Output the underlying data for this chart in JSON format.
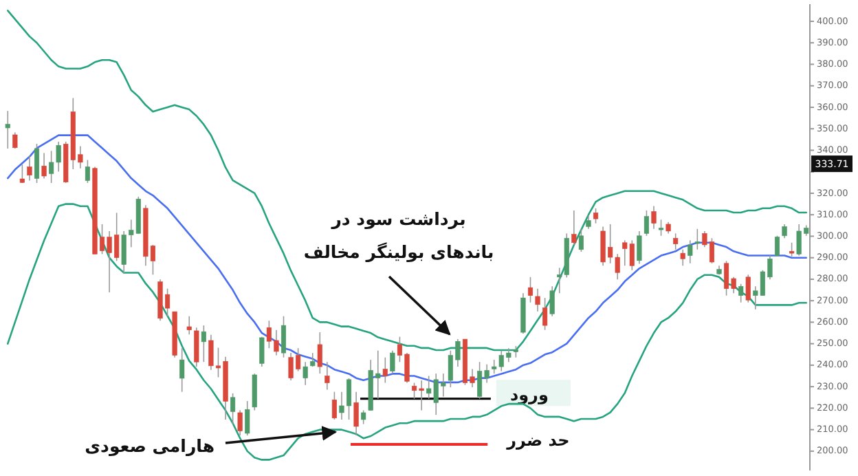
{
  "chart_data": {
    "type": "candlestick",
    "categories": [
      null,
      null,
      null,
      null,
      null,
      null,
      null,
      null,
      null,
      null,
      null,
      null,
      null,
      null,
      null,
      null,
      null,
      null,
      null,
      null,
      null,
      null,
      null,
      null,
      null,
      null,
      null,
      null,
      null,
      null,
      null,
      null,
      null,
      null,
      null,
      null,
      null,
      null,
      null,
      null,
      null,
      null,
      null,
      null,
      null,
      null,
      null,
      null,
      null,
      null,
      null,
      null,
      null,
      null,
      null,
      null,
      null,
      null,
      null,
      null,
      null,
      null,
      null,
      null,
      null,
      null,
      null,
      null,
      null,
      null,
      null,
      null,
      null,
      null,
      null,
      null,
      null,
      null,
      null,
      null,
      null,
      null,
      null,
      null,
      null,
      null,
      null,
      null,
      null,
      null,
      null,
      null,
      null,
      null,
      null,
      null,
      null,
      null,
      null,
      null,
      null,
      null,
      null,
      null,
      null,
      null,
      null,
      null,
      null,
      null,
      null
    ],
    "ohlc": [
      [
        350.4,
        358.3,
        340.8,
        352.1
      ],
      [
        347.2,
        348.3,
        340.8,
        341.2
      ],
      [
        326.7,
        333.3,
        324.8,
        325.0
      ],
      [
        332.3,
        337.6,
        325.9,
        328.4
      ],
      [
        326.9,
        343.0,
        324.8,
        340.8
      ],
      [
        332.7,
        338.7,
        326.9,
        328.0
      ],
      [
        329.1,
        339.7,
        324.8,
        334.4
      ],
      [
        334.4,
        344.0,
        330.1,
        342.3
      ],
      [
        342.9,
        344.0,
        324.8,
        325.2
      ],
      [
        357.9,
        364.3,
        331.2,
        335.5
      ],
      [
        338.0,
        341.9,
        331.6,
        334.4
      ],
      [
        325.9,
        335.5,
        324.8,
        332.3
      ],
      [
        331.6,
        332.3,
        291.7,
        291.7
      ],
      [
        299.6,
        305.6,
        291.7,
        293.2
      ],
      [
        299.6,
        302.4,
        273.9,
        292.3
      ],
      [
        300.6,
        310.9,
        288.5,
        290.0
      ],
      [
        286.8,
        302.4,
        282.5,
        300.6
      ],
      [
        300.6,
        307.7,
        294.9,
        302.8
      ],
      [
        301.3,
        318.4,
        301.3,
        317.3
      ],
      [
        313.0,
        314.5,
        286.3,
        290.6
      ],
      [
        295.5,
        296.0,
        282.1,
        288.5
      ],
      [
        278.8,
        279.9,
        260.7,
        261.8
      ],
      [
        272.9,
        275.6,
        262.8,
        266.5
      ],
      [
        264.9,
        264.9,
        243.6,
        244.6
      ],
      [
        233.9,
        247.9,
        227.6,
        242.5
      ],
      [
        257.9,
        262.8,
        254.3,
        256.4
      ],
      [
        256.0,
        257.5,
        239.3,
        241.5
      ],
      [
        250.9,
        258.5,
        241.5,
        255.6
      ],
      [
        251.5,
        254.1,
        237.8,
        239.7
      ],
      [
        239.7,
        248.1,
        234.4,
        238.7
      ],
      [
        241.8,
        243.9,
        214.7,
        223.2
      ],
      [
        218.4,
        226.9,
        212.6,
        225.0
      ],
      [
        217.9,
        219.0,
        207.3,
        209.4
      ],
      [
        208.3,
        223.3,
        207.3,
        219.4
      ],
      [
        220.5,
        236.1,
        219.0,
        235.5
      ],
      [
        240.8,
        253.2,
        239.3,
        252.8
      ],
      [
        257.5,
        260.7,
        247.9,
        251.1
      ],
      [
        251.5,
        256.4,
        244.6,
        246.4
      ],
      [
        245.7,
        262.8,
        243.6,
        258.5
      ],
      [
        243.6,
        245.7,
        232.9,
        234.0
      ],
      [
        244.6,
        247.9,
        237.2,
        238.2
      ],
      [
        234.0,
        241.5,
        230.8,
        239.3
      ],
      [
        239.7,
        245.7,
        239.3,
        241.8
      ],
      [
        249.6,
        255.3,
        236.1,
        239.3
      ],
      [
        235.0,
        241.5,
        228.6,
        231.8
      ],
      [
        223.9,
        227.6,
        214.7,
        215.4
      ],
      [
        217.9,
        227.6,
        214.7,
        221.1
      ],
      [
        221.1,
        233.9,
        214.7,
        233.3
      ],
      [
        222.6,
        227.6,
        207.3,
        211.5
      ],
      [
        214.7,
        219.0,
        212.6,
        217.9
      ],
      [
        219.0,
        242.5,
        219.0,
        237.6
      ],
      [
        234.0,
        246.8,
        224.4,
        236.1
      ],
      [
        238.2,
        243.6,
        231.8,
        235.0
      ],
      [
        237.2,
        246.8,
        236.1,
        245.7
      ],
      [
        249.6,
        253.2,
        241.5,
        244.6
      ],
      [
        245.1,
        245.7,
        231.8,
        232.5
      ],
      [
        230.3,
        231.8,
        224.4,
        228.2
      ],
      [
        229.1,
        232.9,
        219.0,
        228.2
      ],
      [
        226.9,
        235.0,
        224.4,
        229.1
      ],
      [
        222.6,
        236.1,
        216.9,
        233.3
      ],
      [
        230.3,
        236.1,
        225.4,
        231.8
      ],
      [
        232.9,
        246.8,
        229.7,
        244.6
      ],
      [
        242.5,
        252.1,
        239.3,
        251.1
      ],
      [
        252.1,
        252.1,
        230.8,
        231.8
      ],
      [
        234.6,
        238.2,
        229.7,
        231.8
      ],
      [
        225.4,
        241.5,
        224.4,
        237.2
      ],
      [
        234.0,
        240.4,
        231.8,
        237.6
      ],
      [
        238.2,
        242.5,
        236.1,
        239.3
      ],
      [
        239.3,
        246.8,
        237.2,
        244.6
      ],
      [
        243.6,
        247.9,
        241.5,
        245.7
      ],
      [
        246.2,
        248.9,
        243.6,
        247.2
      ],
      [
        255.3,
        273.5,
        254.7,
        271.3
      ],
      [
        276.1,
        281.0,
        269.2,
        272.4
      ],
      [
        272.0,
        275.6,
        265.0,
        268.2
      ],
      [
        266.7,
        271.3,
        256.4,
        258.5
      ],
      [
        263.9,
        276.7,
        262.8,
        274.6
      ],
      [
        281.0,
        285.3,
        273.5,
        282.1
      ],
      [
        282.1,
        301.3,
        280.8,
        299.1
      ],
      [
        300.9,
        312.0,
        295.9,
        297.0
      ],
      [
        293.8,
        303.4,
        292.8,
        300.2
      ],
      [
        304.5,
        309.8,
        303.4,
        307.3
      ],
      [
        310.9,
        313.0,
        306.0,
        308.1
      ],
      [
        302.4,
        304.5,
        286.3,
        288.0
      ],
      [
        294.9,
        305.6,
        287.4,
        290.2
      ],
      [
        290.2,
        291.7,
        279.9,
        283.1
      ],
      [
        297.0,
        298.1,
        286.3,
        294.2
      ],
      [
        296.4,
        298.1,
        284.2,
        286.3
      ],
      [
        288.7,
        302.4,
        287.2,
        300.2
      ],
      [
        301.3,
        312.0,
        300.2,
        309.2
      ],
      [
        311.5,
        314.1,
        303.4,
        306.0
      ],
      [
        303.0,
        307.7,
        300.2,
        303.8
      ],
      [
        305.6,
        306.6,
        301.3,
        302.4
      ],
      [
        299.1,
        301.3,
        293.8,
        296.4
      ],
      [
        292.1,
        293.8,
        286.3,
        289.5
      ],
      [
        291.0,
        298.1,
        287.4,
        295.9
      ],
      [
        296.6,
        303.4,
        293.8,
        297.4
      ],
      [
        301.3,
        302.4,
        294.9,
        296.0
      ],
      [
        297.4,
        299.1,
        287.4,
        288.0
      ],
      [
        282.5,
        286.3,
        282.1,
        284.6
      ],
      [
        287.4,
        288.5,
        272.4,
        275.6
      ],
      [
        280.3,
        281.0,
        273.5,
        275.6
      ],
      [
        272.4,
        277.8,
        269.2,
        276.7
      ],
      [
        281.0,
        282.1,
        269.2,
        270.3
      ],
      [
        272.4,
        276.7,
        266.0,
        274.6
      ],
      [
        272.4,
        284.2,
        272.4,
        283.5
      ],
      [
        281.0,
        291.0,
        279.9,
        289.5
      ],
      [
        291.0,
        300.2,
        290.6,
        299.6
      ],
      [
        300.2,
        305.6,
        299.1,
        304.5
      ],
      [
        293.0,
        297.0,
        290.6,
        292.1
      ],
      [
        291.7,
        305.6,
        291.0,
        302.4
      ],
      [
        301.3,
        305.1,
        300.2,
        303.8
      ]
    ],
    "series": [
      {
        "type": "line",
        "color": "#26a37f",
        "values": [
          405,
          401,
          397,
          393,
          390,
          386,
          382,
          379,
          378,
          378,
          378,
          379,
          381,
          382,
          382,
          381,
          375,
          368,
          365,
          361,
          358,
          359,
          360,
          361,
          360,
          359,
          356,
          352,
          347,
          340,
          332,
          326,
          324,
          322,
          320,
          314,
          306,
          299,
          292,
          284,
          277,
          270,
          262,
          260,
          260,
          259,
          258,
          258,
          257,
          256,
          255,
          253,
          252,
          251,
          250,
          249,
          249,
          248,
          248,
          247,
          247,
          248,
          248,
          248,
          248,
          248,
          248,
          247,
          247,
          247,
          247,
          251,
          256,
          261,
          266,
          272,
          280,
          288,
          296,
          303,
          310,
          316,
          318,
          319,
          320,
          321,
          321,
          321,
          321,
          321,
          320,
          319,
          318,
          317,
          315,
          313,
          312,
          312,
          312,
          312,
          311,
          311,
          312,
          312,
          313,
          313,
          314,
          314,
          313,
          311,
          311
        ]
      },
      {
        "type": "line",
        "color": "#4a6ef2",
        "values": [
          327,
          331,
          334,
          337,
          341,
          343,
          345,
          347,
          347,
          347,
          347,
          347,
          344,
          341,
          338,
          335,
          331,
          327,
          324,
          321,
          319,
          316,
          313,
          309,
          305,
          301,
          297,
          293,
          289,
          285,
          280,
          275,
          269,
          264,
          260,
          255,
          253,
          251,
          248,
          247,
          245,
          244,
          243,
          241,
          240,
          238,
          237,
          236,
          234,
          233,
          234,
          235,
          235,
          236,
          236,
          235,
          235,
          234,
          233,
          232,
          232,
          232,
          232,
          233,
          233,
          234,
          234,
          235,
          236,
          237,
          238,
          240,
          241,
          243,
          245,
          246,
          248,
          250,
          254,
          258,
          262,
          265,
          269,
          272,
          275,
          279,
          282,
          285,
          287,
          289,
          291,
          292,
          293,
          295,
          296,
          297,
          297,
          297,
          296,
          295,
          293,
          292,
          291,
          291,
          291,
          291,
          291,
          291,
          290,
          290,
          290
        ]
      },
      {
        "type": "line",
        "color": "#26a37f",
        "values": [
          250,
          260,
          270,
          280,
          289,
          298,
          306,
          314,
          315,
          315,
          314,
          314,
          306,
          298,
          290,
          286,
          283,
          283,
          283,
          278,
          274,
          269,
          263,
          257,
          249,
          242,
          238,
          233,
          229,
          224,
          219,
          213,
          206,
          200,
          197,
          196,
          196,
          197,
          198,
          202,
          206,
          208,
          209,
          210,
          210,
          210,
          210,
          209,
          208,
          206,
          207,
          209,
          211,
          212,
          213,
          213,
          214,
          214,
          214,
          214,
          214,
          215,
          215,
          215,
          216,
          216,
          217,
          219,
          221,
          222,
          222,
          222,
          220,
          217,
          216,
          216,
          216,
          215,
          214,
          215,
          215,
          215,
          216,
          218,
          222,
          227,
          235,
          242,
          249,
          255,
          260,
          262,
          265,
          269,
          275,
          280,
          282,
          282,
          281,
          278,
          277,
          274,
          272,
          268,
          268,
          268,
          268,
          268,
          268,
          269,
          269
        ]
      }
    ],
    "ref_lines": [
      {
        "axis": "y",
        "value": 224.4,
        "label": "ورود",
        "color": "#111111"
      },
      {
        "axis": "y",
        "value": 203.2,
        "label": "حد ضرر",
        "color": "#ee2b2b"
      }
    ],
    "ylim": [
      191,
      408
    ],
    "yticks": [
      {
        "value": 200,
        "label": "200.00"
      },
      {
        "value": 210,
        "label": "210.00"
      },
      {
        "value": 220,
        "label": "220.00"
      },
      {
        "value": 230,
        "label": "230.00"
      },
      {
        "value": 240,
        "label": "240.00"
      },
      {
        "value": 250,
        "label": "250.00"
      },
      {
        "value": 260,
        "label": "260.00"
      },
      {
        "value": 270,
        "label": "270.00"
      },
      {
        "value": 280,
        "label": "280.00"
      },
      {
        "value": 290,
        "label": "290.00"
      },
      {
        "value": 300,
        "label": "300.00"
      },
      {
        "value": 310,
        "label": "310.00"
      },
      {
        "value": 320,
        "label": "320.00"
      },
      {
        "value": 330,
        "label": null
      },
      {
        "value": 340,
        "label": "340.00"
      },
      {
        "value": 350,
        "label": "350.00"
      },
      {
        "value": 360,
        "label": "360.00"
      },
      {
        "value": 370,
        "label": "370.00"
      },
      {
        "value": 380,
        "label": "380.00"
      },
      {
        "value": 390,
        "label": "390.00"
      },
      {
        "value": 400,
        "label": "400.00"
      }
    ],
    "tick_labels": "y",
    "annotations": [
      "برداشت سود در\nباندهای بولینگر مخالف",
      "هارامی صعودی",
      {
        "text": "333.71",
        "y": 333.71
      }
    ]
  }
}
